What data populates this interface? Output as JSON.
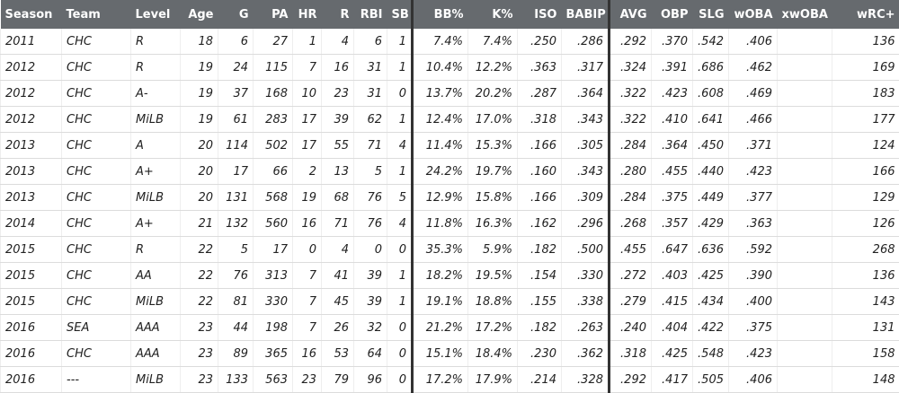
{
  "table": {
    "headers": [
      "Season",
      "Team",
      "Level",
      "Age",
      "G",
      "PA",
      "HR",
      "R",
      "RBI",
      "SB",
      "BB%",
      "K%",
      "ISO",
      "BABIP",
      "AVG",
      "OBP",
      "SLG",
      "wOBA",
      "xwOBA",
      "wRC+"
    ],
    "rows": [
      [
        2011,
        "CHC",
        "R",
        18,
        6,
        27,
        1,
        4,
        6,
        1,
        "7.4%",
        "7.4%",
        ".250",
        ".286",
        ".292",
        ".370",
        ".542",
        ".406",
        null,
        136
      ],
      [
        2012,
        "CHC",
        "R",
        19,
        24,
        115,
        7,
        16,
        31,
        1,
        "10.4%",
        "12.2%",
        ".363",
        ".317",
        ".324",
        ".391",
        ".686",
        ".462",
        null,
        169
      ],
      [
        2012,
        "CHC",
        "A-",
        19,
        37,
        168,
        10,
        23,
        31,
        0,
        "13.7%",
        "20.2%",
        ".287",
        ".364",
        ".322",
        ".423",
        ".608",
        ".469",
        null,
        183
      ],
      [
        2012,
        "CHC",
        "MiLB",
        19,
        61,
        283,
        17,
        39,
        62,
        1,
        "12.4%",
        "17.0%",
        ".318",
        ".343",
        ".322",
        ".410",
        ".641",
        ".466",
        null,
        177
      ],
      [
        2013,
        "CHC",
        "A",
        20,
        114,
        502,
        17,
        55,
        71,
        4,
        "11.4%",
        "15.3%",
        ".166",
        ".305",
        ".284",
        ".364",
        ".450",
        ".371",
        null,
        124
      ],
      [
        2013,
        "CHC",
        "A+",
        20,
        17,
        66,
        2,
        13,
        5,
        1,
        "24.2%",
        "19.7%",
        ".160",
        ".343",
        ".280",
        ".455",
        ".440",
        ".423",
        null,
        166
      ],
      [
        2013,
        "CHC",
        "MiLB",
        20,
        131,
        568,
        19,
        68,
        76,
        5,
        "12.9%",
        "15.8%",
        ".166",
        ".309",
        ".284",
        ".375",
        ".449",
        ".377",
        null,
        129
      ],
      [
        2014,
        "CHC",
        "A+",
        21,
        132,
        560,
        16,
        71,
        76,
        4,
        "11.8%",
        "16.3%",
        ".162",
        ".296",
        ".268",
        ".357",
        ".429",
        ".363",
        null,
        126
      ],
      [
        2015,
        "CHC",
        "R",
        22,
        5,
        17,
        0,
        4,
        0,
        0,
        "35.3%",
        "5.9%",
        ".182",
        ".500",
        ".455",
        ".647",
        ".636",
        ".592",
        null,
        268
      ],
      [
        2015,
        "CHC",
        "AA",
        22,
        76,
        313,
        7,
        41,
        39,
        1,
        "18.2%",
        "19.5%",
        ".154",
        ".330",
        ".272",
        ".403",
        ".425",
        ".390",
        null,
        136
      ],
      [
        2015,
        "CHC",
        "MiLB",
        22,
        81,
        330,
        7,
        45,
        39,
        1,
        "19.1%",
        "18.8%",
        ".155",
        ".338",
        ".279",
        ".415",
        ".434",
        ".400",
        null,
        143
      ],
      [
        2016,
        "SEA",
        "AAA",
        23,
        44,
        198,
        7,
        26,
        32,
        0,
        "21.2%",
        "17.2%",
        ".182",
        ".263",
        ".240",
        ".404",
        ".422",
        ".375",
        null,
        131
      ],
      [
        2016,
        "CHC",
        "AAA",
        23,
        89,
        365,
        16,
        53,
        64,
        0,
        "15.1%",
        "18.4%",
        ".230",
        ".362",
        ".318",
        ".425",
        ".548",
        ".423",
        null,
        158
      ],
      [
        2016,
        "---",
        "MiLB",
        23,
        133,
        563,
        23,
        79,
        96,
        0,
        "17.2%",
        "17.9%",
        ".214",
        ".328",
        ".292",
        ".417",
        ".505",
        ".406",
        null,
        148
      ]
    ]
  }
}
